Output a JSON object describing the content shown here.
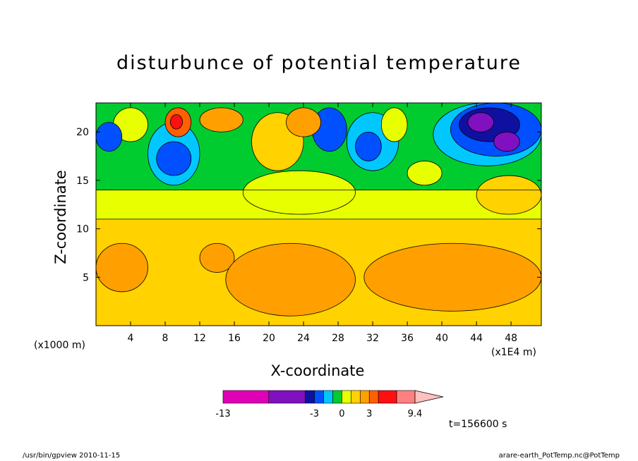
{
  "chart_data": {
    "type": "heatmap",
    "title": "disturbunce of potential temperature",
    "xlabel": "X-coordinate",
    "ylabel": "Z-coordinate",
    "x_unit_left": "(x1000 m)",
    "x_unit_right": "(x1E4 m)",
    "xlim": [
      0,
      51.5
    ],
    "ylim": [
      0,
      23
    ],
    "x_ticks": [
      "4",
      "8",
      "12",
      "16",
      "20",
      "24",
      "28",
      "32",
      "36",
      "40",
      "44",
      "48"
    ],
    "x_tick_values": [
      4,
      8,
      12,
      16,
      20,
      24,
      28,
      32,
      36,
      40,
      44,
      48
    ],
    "y_ticks": [
      "5",
      "10",
      "15",
      "20"
    ],
    "y_tick_values": [
      5,
      10,
      15,
      20
    ],
    "colorbar": {
      "labels": [
        "-13",
        "-3",
        "0",
        "3",
        "9.4"
      ],
      "label_values": [
        -13,
        -3,
        0,
        3,
        9.4
      ],
      "range": [
        -13,
        12
      ],
      "bins": [
        {
          "from": -13,
          "to": -8,
          "color": "#e000b8"
        },
        {
          "from": -8,
          "to": -4,
          "color": "#8010c0"
        },
        {
          "from": -4,
          "to": -3,
          "color": "#1010a0"
        },
        {
          "from": -3,
          "to": -2,
          "color": "#0050ff"
        },
        {
          "from": -2,
          "to": -1,
          "color": "#00c8ff"
        },
        {
          "from": -1,
          "to": 0,
          "color": "#00cc30"
        },
        {
          "from": 0,
          "to": 1,
          "color": "#e8ff00"
        },
        {
          "from": 1,
          "to": 2,
          "color": "#ffd200"
        },
        {
          "from": 2,
          "to": 3,
          "color": "#ffa000"
        },
        {
          "from": 3,
          "to": 4,
          "color": "#ff6000"
        },
        {
          "from": 4,
          "to": 6,
          "color": "#ff1010"
        },
        {
          "from": 6,
          "to": 8,
          "color": "#ff8080"
        },
        {
          "from": 8,
          "to": 12,
          "color": "#ffc0c0"
        }
      ]
    },
    "regions": [
      {
        "x0": 0,
        "x1": 51.5,
        "z0": 0,
        "z1": 11,
        "value": 1.5
      },
      {
        "x0": 0,
        "x1": 51.5,
        "z0": 11,
        "z1": 14,
        "value": 0.5
      },
      {
        "x0": 0,
        "x1": 51.5,
        "z0": 14,
        "z1": 23,
        "value": -0.5
      },
      {
        "x0": 0,
        "x1": 6,
        "z0": 3.5,
        "z1": 8.5,
        "value": 2.5
      },
      {
        "x0": 12,
        "x1": 16,
        "z0": 5.5,
        "z1": 8.5,
        "value": 2.5
      },
      {
        "x0": 15,
        "x1": 30,
        "z0": 1,
        "z1": 8.5,
        "value": 2.5
      },
      {
        "x0": 31,
        "x1": 51.5,
        "z0": 1.5,
        "z1": 8.5,
        "value": 2.5
      },
      {
        "x0": 17,
        "x1": 30,
        "z0": 11.5,
        "z1": 16,
        "value": 0.5
      },
      {
        "x0": 18,
        "x1": 24,
        "z0": 16,
        "z1": 22,
        "value": 1.5
      },
      {
        "x0": 2,
        "x1": 6,
        "z0": 19,
        "z1": 22.5,
        "value": 0.5
      },
      {
        "x0": 6,
        "x1": 12,
        "z0": 14.5,
        "z1": 21,
        "value": -1.5
      },
      {
        "x0": 7,
        "x1": 11,
        "z0": 15.5,
        "z1": 19,
        "value": -2.5
      },
      {
        "x0": 8,
        "x1": 11,
        "z0": 19.5,
        "z1": 22.5,
        "value": 3.5
      },
      {
        "x0": 8.6,
        "x1": 10,
        "z0": 20.3,
        "z1": 21.8,
        "value": 4.5
      },
      {
        "x0": 29,
        "x1": 35,
        "z0": 16,
        "z1": 22,
        "value": -1.5
      },
      {
        "x0": 30,
        "x1": 33,
        "z0": 17,
        "z1": 20,
        "value": -2.5
      },
      {
        "x0": 33,
        "x1": 36,
        "z0": 19,
        "z1": 22.5,
        "value": 0.5
      },
      {
        "x0": 39,
        "x1": 51.5,
        "z0": 16.5,
        "z1": 23,
        "value": -1.5
      },
      {
        "x0": 41,
        "x1": 51.5,
        "z0": 17.5,
        "z1": 23,
        "value": -2.5
      },
      {
        "x0": 42,
        "x1": 49,
        "z0": 19,
        "z1": 22.5,
        "value": -3.5
      },
      {
        "x0": 43,
        "x1": 46,
        "z0": 20,
        "z1": 22,
        "value": -6
      },
      {
        "x0": 46,
        "x1": 49,
        "z0": 18,
        "z1": 20,
        "value": -6
      },
      {
        "x0": 44,
        "x1": 51.5,
        "z0": 11.5,
        "z1": 15.5,
        "value": 1.5
      },
      {
        "x0": 0,
        "x1": 3,
        "z0": 18,
        "z1": 21,
        "value": -2.5
      },
      {
        "x0": 12,
        "x1": 17,
        "z0": 20,
        "z1": 22.5,
        "value": 2.5
      },
      {
        "x0": 25,
        "x1": 29,
        "z0": 18,
        "z1": 22.5,
        "value": -2.5
      },
      {
        "x0": 36,
        "x1": 40,
        "z0": 14.5,
        "z1": 17,
        "value": 0.5
      },
      {
        "x0": 22,
        "x1": 26,
        "z0": 19.5,
        "z1": 22.5,
        "value": 2.5
      }
    ]
  },
  "timestamp": "t=156600 s",
  "footer_left": "/usr/bin/gpview   2010-11-15",
  "footer_right": "arare-earth_PotTemp.nc@PotTemp"
}
